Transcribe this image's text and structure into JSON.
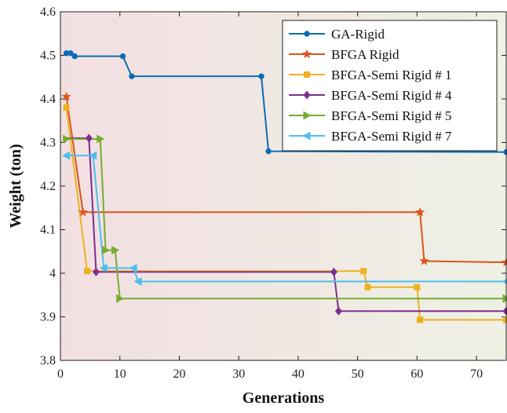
{
  "chart_data": {
    "type": "line",
    "title": "",
    "xlabel": "Generations",
    "ylabel": "Weight (ton)",
    "xlim": [
      0,
      75
    ],
    "ylim": [
      3.8,
      4.6
    ],
    "xticks": [
      0,
      10,
      20,
      30,
      40,
      50,
      60,
      70
    ],
    "yticks": [
      3.8,
      3.9,
      4.0,
      4.1,
      4.2,
      4.3,
      4.4,
      4.5,
      4.6
    ],
    "grid": false,
    "legend_position": "top-right",
    "background_gradient": [
      "#f2dfe2",
      "#eef1e4"
    ],
    "series": [
      {
        "name": "GA-Rigid",
        "color": "#0c6db5",
        "marker": "circle",
        "points": [
          [
            1,
            4.505
          ],
          [
            1.7,
            4.505
          ],
          [
            2.4,
            4.498
          ],
          [
            10.5,
            4.498
          ],
          [
            12,
            4.452
          ],
          [
            33.8,
            4.452
          ],
          [
            35,
            4.28
          ],
          [
            75,
            4.278
          ]
        ],
        "marked": [
          0,
          1,
          2,
          3,
          4,
          5,
          6,
          7
        ]
      },
      {
        "name": "BFGA Rigid",
        "color": "#d9541e",
        "marker": "star",
        "points": [
          [
            1,
            4.405
          ],
          [
            3.8,
            4.14
          ],
          [
            60.5,
            4.14
          ],
          [
            61.2,
            4.028
          ],
          [
            75,
            4.025
          ]
        ],
        "marked": [
          0,
          1,
          2,
          3,
          4
        ]
      },
      {
        "name": "BFGA-Semi Rigid # 1",
        "color": "#edb120",
        "marker": "square",
        "points": [
          [
            1,
            4.38
          ],
          [
            4.5,
            4.005
          ],
          [
            51,
            4.005
          ],
          [
            51.7,
            3.968
          ],
          [
            60,
            3.968
          ],
          [
            60.5,
            3.893
          ],
          [
            75,
            3.893
          ]
        ],
        "marked": [
          0,
          1,
          2,
          3,
          4,
          5,
          6
        ]
      },
      {
        "name": "BFGA-Semi Rigid # 4",
        "color": "#7e2f8e",
        "marker": "diamond",
        "points": [
          [
            1,
            4.31
          ],
          [
            4.8,
            4.31
          ],
          [
            6,
            4.003
          ],
          [
            46,
            4.003
          ],
          [
            46.8,
            3.913
          ],
          [
            75,
            3.913
          ]
        ],
        "marked": [
          1,
          2,
          3,
          4,
          5
        ]
      },
      {
        "name": "BFGA-Semi Rigid # 5",
        "color": "#77ac30",
        "marker": "triangle-right",
        "points": [
          [
            1,
            4.308
          ],
          [
            6.7,
            4.308
          ],
          [
            7.6,
            4.053
          ],
          [
            9.2,
            4.053
          ],
          [
            10,
            3.942
          ],
          [
            75,
            3.942
          ]
        ],
        "marked": [
          0,
          1,
          2,
          3,
          4,
          5
        ]
      },
      {
        "name": "BFGA-Semi Rigid # 7",
        "color": "#4dbeee",
        "marker": "triangle-left",
        "points": [
          [
            1,
            4.27
          ],
          [
            5.5,
            4.27
          ],
          [
            7.3,
            4.012
          ],
          [
            12.3,
            4.012
          ],
          [
            13.1,
            3.981
          ],
          [
            75,
            3.981
          ]
        ],
        "marked": [
          0,
          1,
          2,
          3,
          4,
          5
        ]
      }
    ]
  }
}
